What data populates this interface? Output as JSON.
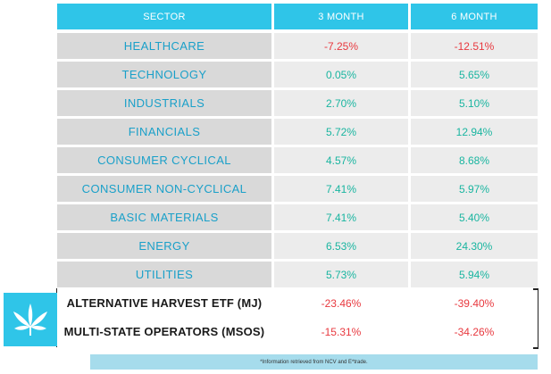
{
  "table": {
    "headers": [
      "SECTOR",
      "3 MONTH",
      "6 MONTH"
    ],
    "rows": [
      {
        "sector": "HEALTHCARE",
        "m3": "-7.25%",
        "m6": "-12.51%"
      },
      {
        "sector": "TECHNOLOGY",
        "m3": "0.05%",
        "m6": "5.65%"
      },
      {
        "sector": "INDUSTRIALS",
        "m3": "2.70%",
        "m6": "5.10%"
      },
      {
        "sector": "FINANCIALS",
        "m3": "5.72%",
        "m6": "12.94%"
      },
      {
        "sector": "CONSUMER CYCLICAL",
        "m3": "4.57%",
        "m6": "8.68%"
      },
      {
        "sector": "CONSUMER NON-CYCLICAL",
        "m3": "7.41%",
        "m6": "5.97%"
      },
      {
        "sector": "BASIC MATERIALS",
        "m3": "7.41%",
        "m6": "5.40%"
      },
      {
        "sector": "ENERGY",
        "m3": "6.53%",
        "m6": "24.30%"
      },
      {
        "sector": "UTILITIES",
        "m3": "5.73%",
        "m6": "5.94%"
      },
      {
        "sector": "ALTERNATIVE HARVEST ETF (MJ)",
        "m3": "-23.46%",
        "m6": "-39.40%"
      },
      {
        "sector": "MULTI-STATE OPERATORS (MSOS)",
        "m3": "-15.31%",
        "m6": "-34.26%"
      }
    ]
  },
  "chart_data": {
    "type": "table",
    "columns": [
      "SECTOR",
      "3 MONTH",
      "6 MONTH"
    ],
    "rows": [
      [
        "HEALTHCARE",
        -7.25,
        -12.51
      ],
      [
        "TECHNOLOGY",
        0.05,
        5.65
      ],
      [
        "INDUSTRIALS",
        2.7,
        5.1
      ],
      [
        "FINANCIALS",
        5.72,
        12.94
      ],
      [
        "CONSUMER CYCLICAL",
        4.57,
        8.68
      ],
      [
        "CONSUMER NON-CYCLICAL",
        7.41,
        5.97
      ],
      [
        "BASIC MATERIALS",
        7.41,
        5.4
      ],
      [
        "ENERGY",
        6.53,
        24.3
      ],
      [
        "UTILITIES",
        5.73,
        5.94
      ],
      [
        "ALTERNATIVE HARVEST ETF (MJ)",
        -23.46,
        -39.4
      ],
      [
        "MULTI-STATE OPERATORS (MSOS)",
        -15.31,
        -34.26
      ]
    ]
  },
  "logo": {
    "icon": "cannabis-leaf-icon"
  },
  "footer": {
    "note": "*Information retrieved from NCV and E*trade."
  },
  "colors": {
    "header": "#2fc5e8",
    "sector_text": "#1aa0c9",
    "positive": "#19b5a0",
    "negative": "#e8393f"
  }
}
